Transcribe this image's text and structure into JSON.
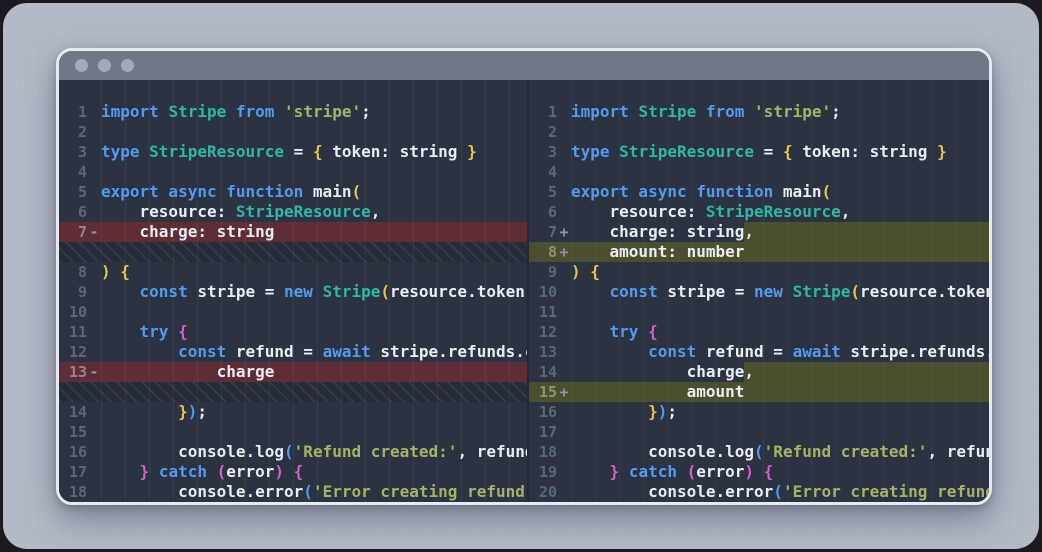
{
  "window": {
    "traffic_lights": [
      "close",
      "minimize",
      "zoom"
    ]
  },
  "colors": {
    "backdrop": "#b4bac7",
    "window_border": "#e7eaf0",
    "titlebar": "#6f7789",
    "editor_bg": "#2b3242",
    "deleted_row_bg": "#5e2d35",
    "added_row_bg": "#4a4f2e",
    "keyword": "#549bf0",
    "class_name": "#2fb8a2",
    "string": "#a5b464",
    "text": "#e9edf2",
    "bracket_yellow": "#e9c64a",
    "bracket_pink": "#d661c9",
    "line_number": "#5c6779"
  },
  "panes": [
    {
      "side": "old",
      "rows": [
        {
          "num": "1",
          "marker": "",
          "kind": "code",
          "tokens": [
            [
              "import ",
              "kw"
            ],
            [
              "Stripe ",
              "cls"
            ],
            [
              "from ",
              "kw"
            ],
            [
              "'stripe'",
              "str"
            ],
            [
              ";",
              "txt"
            ]
          ]
        },
        {
          "num": "2",
          "marker": "",
          "kind": "code",
          "tokens": []
        },
        {
          "num": "3",
          "marker": "",
          "kind": "code",
          "tokens": [
            [
              "type ",
              "kw"
            ],
            [
              "StripeResource ",
              "cls"
            ],
            [
              "= ",
              "txt"
            ],
            [
              "{",
              "yb"
            ],
            [
              " token: string ",
              "txt"
            ],
            [
              "}",
              "yb"
            ]
          ]
        },
        {
          "num": "4",
          "marker": "",
          "kind": "code",
          "tokens": []
        },
        {
          "num": "5",
          "marker": "",
          "kind": "code",
          "tokens": [
            [
              "export async function ",
              "kw"
            ],
            [
              "main",
              "txt"
            ],
            [
              "(",
              "yb"
            ]
          ]
        },
        {
          "num": "6",
          "marker": "",
          "kind": "code",
          "tokens": [
            [
              "    resource: ",
              "txt"
            ],
            [
              "StripeResource",
              "cls"
            ],
            [
              ",",
              "txt"
            ]
          ]
        },
        {
          "num": "7",
          "marker": "-",
          "kind": "del",
          "tokens": [
            [
              "    charge: string",
              "txt"
            ]
          ]
        },
        {
          "kind": "gap"
        },
        {
          "num": "8",
          "marker": "",
          "kind": "code",
          "tokens": [
            [
              ") ",
              "yb"
            ],
            [
              "{",
              "yb"
            ]
          ]
        },
        {
          "num": "9",
          "marker": "",
          "kind": "code",
          "tokens": [
            [
              "    const ",
              "kw"
            ],
            [
              "stripe = ",
              "txt"
            ],
            [
              "new ",
              "kw"
            ],
            [
              "Stripe",
              "cls"
            ],
            [
              "(",
              "yb"
            ],
            [
              "resource.token);",
              "txt"
            ]
          ]
        },
        {
          "num": "10",
          "marker": "",
          "kind": "code",
          "tokens": []
        },
        {
          "num": "11",
          "marker": "",
          "kind": "code",
          "tokens": [
            [
              "    ",
              "txt"
            ],
            [
              "try ",
              "kw"
            ],
            [
              "{",
              "pb"
            ]
          ]
        },
        {
          "num": "12",
          "marker": "",
          "kind": "code",
          "tokens": [
            [
              "        const ",
              "kw"
            ],
            [
              "refund = ",
              "txt"
            ],
            [
              "await ",
              "kw"
            ],
            [
              "stripe.refunds.create({",
              "txt"
            ]
          ]
        },
        {
          "num": "13",
          "marker": "-",
          "kind": "del",
          "tokens": [
            [
              "            charge",
              "txt"
            ]
          ]
        },
        {
          "kind": "gap"
        },
        {
          "num": "14",
          "marker": "",
          "kind": "code",
          "tokens": [
            [
              "        ",
              "txt"
            ],
            [
              "}",
              "yb"
            ],
            [
              ")",
              "kw"
            ],
            [
              ";",
              "txt"
            ]
          ]
        },
        {
          "num": "15",
          "marker": "",
          "kind": "code",
          "tokens": []
        },
        {
          "num": "16",
          "marker": "",
          "kind": "code",
          "tokens": [
            [
              "        console.log",
              "txt"
            ],
            [
              "(",
              "kw"
            ],
            [
              "'Refund created:'",
              "str"
            ],
            [
              ", refund);",
              "txt"
            ]
          ]
        },
        {
          "num": "17",
          "marker": "",
          "kind": "code",
          "tokens": [
            [
              "    ",
              "txt"
            ],
            [
              "}",
              "pb"
            ],
            [
              " ",
              "txt"
            ],
            [
              "catch ",
              "kw"
            ],
            [
              "(",
              "pb"
            ],
            [
              "error",
              "txt"
            ],
            [
              ")",
              "pb"
            ],
            [
              " ",
              "txt"
            ],
            [
              "{",
              "pb"
            ]
          ]
        },
        {
          "num": "18",
          "marker": "",
          "kind": "code",
          "tokens": [
            [
              "        console.error",
              "txt"
            ],
            [
              "(",
              "kw"
            ],
            [
              "'Error creating refund:'",
              "str"
            ],
            [
              ", error);",
              "txt"
            ]
          ]
        }
      ]
    },
    {
      "side": "new",
      "rows": [
        {
          "num": "1",
          "marker": "",
          "kind": "code",
          "tokens": [
            [
              "import ",
              "kw"
            ],
            [
              "Stripe ",
              "cls"
            ],
            [
              "from ",
              "kw"
            ],
            [
              "'stripe'",
              "str"
            ],
            [
              ";",
              "txt"
            ]
          ]
        },
        {
          "num": "2",
          "marker": "",
          "kind": "code",
          "tokens": []
        },
        {
          "num": "3",
          "marker": "",
          "kind": "code",
          "tokens": [
            [
              "type ",
              "kw"
            ],
            [
              "StripeResource ",
              "cls"
            ],
            [
              "= ",
              "txt"
            ],
            [
              "{",
              "yb"
            ],
            [
              " token: string ",
              "txt"
            ],
            [
              "}",
              "yb"
            ]
          ]
        },
        {
          "num": "4",
          "marker": "",
          "kind": "code",
          "tokens": []
        },
        {
          "num": "5",
          "marker": "",
          "kind": "code",
          "tokens": [
            [
              "export async function ",
              "kw"
            ],
            [
              "main",
              "txt"
            ],
            [
              "(",
              "yb"
            ]
          ]
        },
        {
          "num": "6",
          "marker": "",
          "kind": "code",
          "tokens": [
            [
              "    resource: ",
              "txt"
            ],
            [
              "StripeResource",
              "cls"
            ],
            [
              ",",
              "txt"
            ]
          ]
        },
        {
          "num": "7",
          "marker": "+",
          "kind": "mod",
          "tokens": [
            [
              "    charge: string",
              "txt"
            ]
          ],
          "added": ","
        },
        {
          "num": "8",
          "marker": "+",
          "kind": "add",
          "tokens": [
            [
              "    amount: number",
              "txt"
            ]
          ]
        },
        {
          "num": "9",
          "marker": "",
          "kind": "code",
          "tokens": [
            [
              ") ",
              "yb"
            ],
            [
              "{",
              "yb"
            ]
          ]
        },
        {
          "num": "10",
          "marker": "",
          "kind": "code",
          "tokens": [
            [
              "    const ",
              "kw"
            ],
            [
              "stripe = ",
              "txt"
            ],
            [
              "new ",
              "kw"
            ],
            [
              "Stripe",
              "cls"
            ],
            [
              "(",
              "yb"
            ],
            [
              "resource.token);",
              "txt"
            ]
          ]
        },
        {
          "num": "11",
          "marker": "",
          "kind": "code",
          "tokens": []
        },
        {
          "num": "12",
          "marker": "",
          "kind": "code",
          "tokens": [
            [
              "    ",
              "txt"
            ],
            [
              "try ",
              "kw"
            ],
            [
              "{",
              "pb"
            ]
          ]
        },
        {
          "num": "13",
          "marker": "",
          "kind": "code",
          "tokens": [
            [
              "        const ",
              "kw"
            ],
            [
              "refund = ",
              "txt"
            ],
            [
              "await ",
              "kw"
            ],
            [
              "stripe.refunds.create({",
              "txt"
            ]
          ]
        },
        {
          "num": "14",
          "marker": "",
          "kind": "mod",
          "tokens": [
            [
              "            charge",
              "txt"
            ]
          ],
          "added": ","
        },
        {
          "num": "15",
          "marker": "+",
          "kind": "add",
          "tokens": [
            [
              "            amount",
              "txt"
            ]
          ]
        },
        {
          "num": "16",
          "marker": "",
          "kind": "code",
          "tokens": [
            [
              "        ",
              "txt"
            ],
            [
              "}",
              "yb"
            ],
            [
              ")",
              "kw"
            ],
            [
              ";",
              "txt"
            ]
          ]
        },
        {
          "num": "17",
          "marker": "",
          "kind": "code",
          "tokens": []
        },
        {
          "num": "18",
          "marker": "",
          "kind": "code",
          "tokens": [
            [
              "        console.log",
              "txt"
            ],
            [
              "(",
              "kw"
            ],
            [
              "'Refund created:'",
              "str"
            ],
            [
              ", refund);",
              "txt"
            ]
          ]
        },
        {
          "num": "19",
          "marker": "",
          "kind": "code",
          "tokens": [
            [
              "    ",
              "txt"
            ],
            [
              "}",
              "pb"
            ],
            [
              " ",
              "txt"
            ],
            [
              "catch ",
              "kw"
            ],
            [
              "(",
              "pb"
            ],
            [
              "error",
              "txt"
            ],
            [
              ")",
              "pb"
            ],
            [
              " ",
              "txt"
            ],
            [
              "{",
              "pb"
            ]
          ]
        },
        {
          "num": "20",
          "marker": "",
          "kind": "code",
          "tokens": [
            [
              "        console.error",
              "txt"
            ],
            [
              "(",
              "kw"
            ],
            [
              "'Error creating refund:'",
              "str"
            ],
            [
              ", error);",
              "txt"
            ]
          ]
        }
      ]
    }
  ]
}
